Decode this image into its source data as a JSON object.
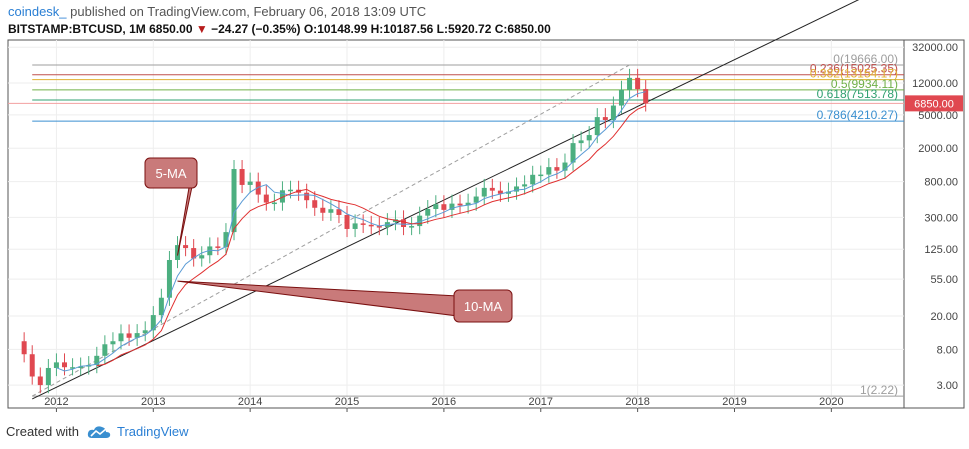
{
  "header": {
    "author": "coindesk_",
    "published_text": "published on TradingView.com, February 06, 2018 13:09 UTC",
    "symbol": "BITSTAMP:BTCUSD, 1M",
    "last_price": "6850.00",
    "change_arrow": "▼",
    "change": "−24.27 (−0.35%)",
    "open_label": "O:",
    "open": "10148.99",
    "high_label": "H:",
    "high": "10187.56",
    "low_label": "L:",
    "low": "5920.72",
    "close_label": "C:",
    "close": "6850.00"
  },
  "footer": {
    "created_with": "Created with",
    "brand": "TradingView"
  },
  "colors": {
    "up": "#4caf80",
    "down": "#e04850",
    "ma5": "#5b9bd5",
    "ma10": "#e03030",
    "callout": "#c97a7a"
  },
  "chart_data": {
    "type": "candlestick",
    "y_scale": "log",
    "ylim": [
      1.6,
      39000
    ],
    "xlim": [
      "2011-07",
      "2020-10"
    ],
    "x_tick_labels": [
      "2012",
      "2013",
      "2014",
      "2015",
      "2016",
      "2017",
      "2018",
      "2019",
      "2020"
    ],
    "y_tick_labels": [
      "32000.00",
      "12000.00",
      "5000.00",
      "2000.00",
      "800.00",
      "300.00",
      "125.00",
      "55.00",
      "20.00",
      "8.00",
      "3.00"
    ],
    "price_label": "6850.00",
    "candles": [
      {
        "t": "2011-09",
        "o": 10,
        "c": 7
      },
      {
        "t": "2011-10",
        "o": 7,
        "c": 3.8
      },
      {
        "t": "2011-11",
        "o": 3.8,
        "c": 3
      },
      {
        "t": "2011-12",
        "o": 3,
        "c": 4.8
      },
      {
        "t": "2012-01",
        "o": 4.8,
        "c": 5.6
      },
      {
        "t": "2012-02",
        "o": 5.6,
        "c": 4.9
      },
      {
        "t": "2012-03",
        "o": 4.9,
        "c": 4.9
      },
      {
        "t": "2012-04",
        "o": 4.9,
        "c": 5
      },
      {
        "t": "2012-05",
        "o": 5,
        "c": 5.2
      },
      {
        "t": "2012-06",
        "o": 5.2,
        "c": 6.7
      },
      {
        "t": "2012-07",
        "o": 6.7,
        "c": 9.2
      },
      {
        "t": "2012-08",
        "o": 9.2,
        "c": 10
      },
      {
        "t": "2012-09",
        "o": 10,
        "c": 12.4
      },
      {
        "t": "2012-10",
        "o": 12.4,
        "c": 11
      },
      {
        "t": "2012-11",
        "o": 11,
        "c": 12.5
      },
      {
        "t": "2012-12",
        "o": 12.5,
        "c": 13.5
      },
      {
        "t": "2013-01",
        "o": 13.5,
        "c": 20.5
      },
      {
        "t": "2013-02",
        "o": 20.5,
        "c": 33
      },
      {
        "t": "2013-03",
        "o": 33,
        "c": 93
      },
      {
        "t": "2013-04",
        "o": 93,
        "c": 140
      },
      {
        "t": "2013-05",
        "o": 140,
        "c": 129
      },
      {
        "t": "2013-06",
        "o": 129,
        "c": 97
      },
      {
        "t": "2013-07",
        "o": 97,
        "c": 106
      },
      {
        "t": "2013-08",
        "o": 106,
        "c": 135
      },
      {
        "t": "2013-09",
        "o": 135,
        "c": 133
      },
      {
        "t": "2013-10",
        "o": 133,
        "c": 200
      },
      {
        "t": "2013-11",
        "o": 200,
        "c": 1130
      },
      {
        "t": "2013-12",
        "o": 1130,
        "c": 730
      },
      {
        "t": "2014-01",
        "o": 730,
        "c": 800
      },
      {
        "t": "2014-02",
        "o": 800,
        "c": 560
      },
      {
        "t": "2014-03",
        "o": 560,
        "c": 450
      },
      {
        "t": "2014-04",
        "o": 450,
        "c": 450
      },
      {
        "t": "2014-05",
        "o": 450,
        "c": 630
      },
      {
        "t": "2014-06",
        "o": 630,
        "c": 640
      },
      {
        "t": "2014-07",
        "o": 640,
        "c": 590
      },
      {
        "t": "2014-08",
        "o": 590,
        "c": 480
      },
      {
        "t": "2014-09",
        "o": 480,
        "c": 390
      },
      {
        "t": "2014-10",
        "o": 390,
        "c": 340
      },
      {
        "t": "2014-11",
        "o": 340,
        "c": 375
      },
      {
        "t": "2014-12",
        "o": 375,
        "c": 320
      },
      {
        "t": "2015-01",
        "o": 320,
        "c": 218
      },
      {
        "t": "2015-02",
        "o": 218,
        "c": 254
      },
      {
        "t": "2015-03",
        "o": 254,
        "c": 244
      },
      {
        "t": "2015-04",
        "o": 244,
        "c": 236
      },
      {
        "t": "2015-05",
        "o": 236,
        "c": 230
      },
      {
        "t": "2015-06",
        "o": 230,
        "c": 263
      },
      {
        "t": "2015-07",
        "o": 263,
        "c": 284
      },
      {
        "t": "2015-08",
        "o": 284,
        "c": 230
      },
      {
        "t": "2015-09",
        "o": 230,
        "c": 236
      },
      {
        "t": "2015-10",
        "o": 236,
        "c": 314
      },
      {
        "t": "2015-11",
        "o": 314,
        "c": 377
      },
      {
        "t": "2015-12",
        "o": 377,
        "c": 430
      },
      {
        "t": "2016-01",
        "o": 430,
        "c": 368
      },
      {
        "t": "2016-02",
        "o": 368,
        "c": 437
      },
      {
        "t": "2016-03",
        "o": 437,
        "c": 416
      },
      {
        "t": "2016-04",
        "o": 416,
        "c": 448
      },
      {
        "t": "2016-05",
        "o": 448,
        "c": 531
      },
      {
        "t": "2016-06",
        "o": 531,
        "c": 673
      },
      {
        "t": "2016-07",
        "o": 673,
        "c": 624
      },
      {
        "t": "2016-08",
        "o": 624,
        "c": 573
      },
      {
        "t": "2016-09",
        "o": 573,
        "c": 608
      },
      {
        "t": "2016-10",
        "o": 608,
        "c": 700
      },
      {
        "t": "2016-11",
        "o": 700,
        "c": 742
      },
      {
        "t": "2016-12",
        "o": 742,
        "c": 964
      },
      {
        "t": "2017-01",
        "o": 964,
        "c": 970
      },
      {
        "t": "2017-02",
        "o": 970,
        "c": 1190
      },
      {
        "t": "2017-03",
        "o": 1190,
        "c": 1080
      },
      {
        "t": "2017-04",
        "o": 1080,
        "c": 1350
      },
      {
        "t": "2017-05",
        "o": 1350,
        "c": 2300
      },
      {
        "t": "2017-06",
        "o": 2300,
        "c": 2480
      },
      {
        "t": "2017-07",
        "o": 2480,
        "c": 2870
      },
      {
        "t": "2017-08",
        "o": 2870,
        "c": 4700
      },
      {
        "t": "2017-09",
        "o": 4700,
        "c": 4340
      },
      {
        "t": "2017-10",
        "o": 4340,
        "c": 6450
      },
      {
        "t": "2017-11",
        "o": 6450,
        "c": 9950
      },
      {
        "t": "2017-12",
        "o": 9950,
        "c": 13800
      },
      {
        "t": "2018-01",
        "o": 13800,
        "c": 10150
      },
      {
        "t": "2018-02",
        "o": 10150,
        "c": 6850
      }
    ],
    "ma5_label": "5-MA",
    "ma10_label": "10-MA",
    "fibonacci": [
      {
        "label": "0(19666.00)",
        "value": 19666,
        "color": "#9e9e9e"
      },
      {
        "label": "0.236(15025.35)",
        "value": 15025.35,
        "color": "#c0504d"
      },
      {
        "label": "0.382(13154.17)",
        "value": 13154.17,
        "color": "#e0b030"
      },
      {
        "label": "0.5(9934.11)",
        "value": 9934.11,
        "color": "#70b048"
      },
      {
        "label": "0.618(7513.78)",
        "value": 7513.78,
        "color": "#30a070"
      },
      {
        "label": "0.786(4210.27)",
        "value": 4210.27,
        "color": "#3a8fd0"
      },
      {
        "label": "1(2.22)",
        "value": 2.22,
        "color": "#9e9e9e"
      }
    ]
  }
}
